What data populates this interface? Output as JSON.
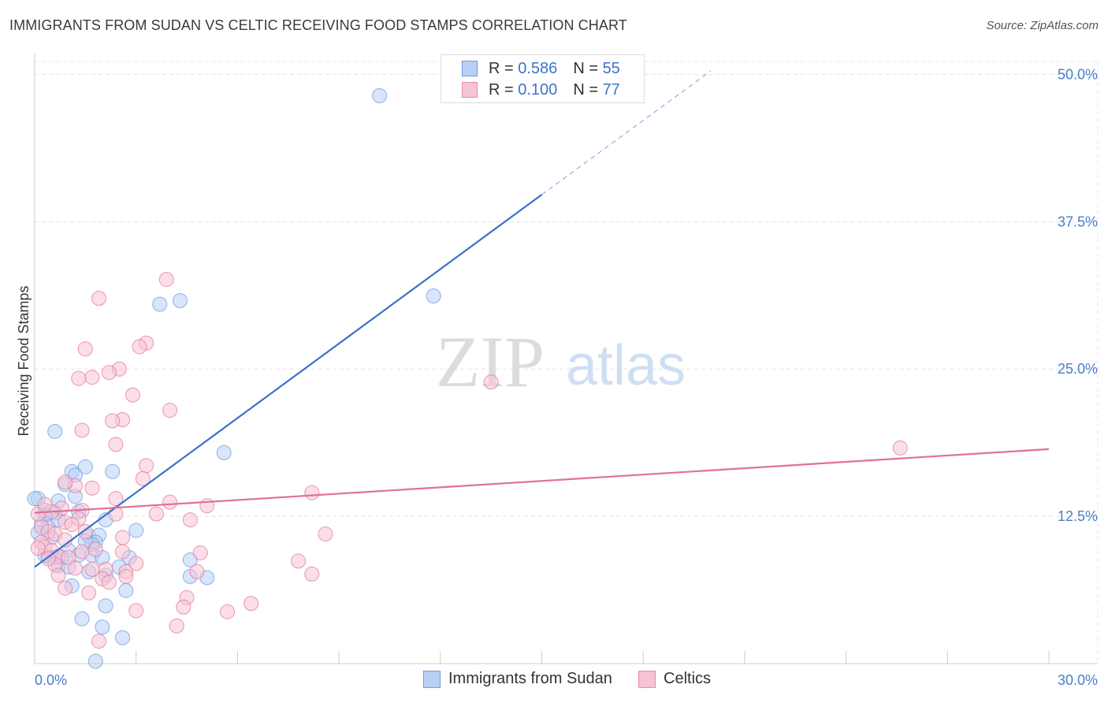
{
  "title": "IMMIGRANTS FROM SUDAN VS CELTIC RECEIVING FOOD STAMPS CORRELATION CHART",
  "source": "Source: ZipAtlas.com",
  "watermark": {
    "zip": "ZIP",
    "atlas": "atlas"
  },
  "legend": {
    "r_label": "R =",
    "n_label": "N =",
    "series": [
      {
        "r": "0.586",
        "n": "55",
        "fill": "#b8d0f5",
        "stroke": "#6b9be0"
      },
      {
        "r": "0.100",
        "n": "77",
        "fill": "#f7c3d4",
        "stroke": "#e88aa8"
      }
    ]
  },
  "bottom_legend": [
    "Immigrants from Sudan",
    "Celtics"
  ],
  "chart_data": {
    "type": "scatter",
    "title": "IMMIGRANTS FROM SUDAN VS CELTIC RECEIVING FOOD STAMPS CORRELATION CHART",
    "xlabel": "",
    "ylabel": "Receiving Food Stamps",
    "xlim": [
      0,
      30
    ],
    "ylim": [
      0,
      50
    ],
    "x_tick_labels": [
      "0.0%",
      "30.0%"
    ],
    "y_ticks": [
      12.5,
      25.0,
      37.5,
      50.0
    ],
    "y_tick_labels": [
      "12.5%",
      "25.0%",
      "37.5%",
      "50.0%"
    ],
    "grid": true,
    "series": [
      {
        "name": "Immigrants from Sudan",
        "color": "#6b9be0",
        "fill": "#b8d0f5",
        "trend": {
          "x0": 0,
          "y0": 8.2,
          "x1": 15,
          "y1": 39.8,
          "dash_to_x": 20,
          "dash_to_y": 50.3
        },
        "points": [
          [
            10.2,
            48.2
          ],
          [
            11.8,
            31.2
          ],
          [
            4.3,
            30.8
          ],
          [
            3.7,
            30.5
          ],
          [
            5.6,
            17.9
          ],
          [
            0.6,
            19.7
          ],
          [
            1.5,
            16.7
          ],
          [
            2.3,
            16.3
          ],
          [
            1.1,
            16.3
          ],
          [
            1.2,
            16.0
          ],
          [
            0.9,
            15.2
          ],
          [
            0.1,
            14.0
          ],
          [
            0.3,
            13.0
          ],
          [
            0.7,
            13.8
          ],
          [
            1.2,
            14.2
          ],
          [
            0.6,
            12.8
          ],
          [
            0.3,
            12.6
          ],
          [
            1.3,
            12.9
          ],
          [
            0.2,
            11.8
          ],
          [
            0.4,
            11.6
          ],
          [
            0.7,
            12.2
          ],
          [
            2.1,
            12.2
          ],
          [
            3.0,
            11.3
          ],
          [
            0.1,
            11.1
          ],
          [
            0.5,
            10.7
          ],
          [
            1.6,
            10.8
          ],
          [
            1.9,
            10.9
          ],
          [
            1.8,
            10.3
          ],
          [
            1.7,
            10.1
          ],
          [
            1.0,
            9.6
          ],
          [
            0.4,
            9.1
          ],
          [
            0.6,
            9.0
          ],
          [
            1.3,
            9.2
          ],
          [
            1.7,
            9.2
          ],
          [
            2.0,
            9.0
          ],
          [
            2.8,
            9.0
          ],
          [
            0.7,
            8.3
          ],
          [
            1.0,
            8.2
          ],
          [
            1.6,
            7.8
          ],
          [
            2.1,
            7.5
          ],
          [
            4.6,
            8.8
          ],
          [
            4.6,
            7.4
          ],
          [
            5.1,
            7.3
          ],
          [
            1.1,
            6.6
          ],
          [
            2.7,
            6.2
          ],
          [
            2.1,
            4.9
          ],
          [
            1.4,
            3.8
          ],
          [
            2.0,
            3.1
          ],
          [
            2.6,
            2.2
          ],
          [
            1.8,
            0.2
          ],
          [
            0.0,
            14.0
          ],
          [
            0.3,
            9.2
          ],
          [
            1.5,
            10.4
          ],
          [
            0.8,
            9.0
          ],
          [
            2.5,
            8.2
          ]
        ]
      },
      {
        "name": "Celtics",
        "color": "#e07898",
        "fill": "#f7c3d4",
        "trend": {
          "x0": 0,
          "y0": 12.8,
          "x1": 30,
          "y1": 18.2
        },
        "points": [
          [
            3.9,
            32.6
          ],
          [
            1.9,
            31.0
          ],
          [
            3.3,
            27.2
          ],
          [
            3.1,
            26.9
          ],
          [
            1.5,
            26.7
          ],
          [
            2.5,
            25.0
          ],
          [
            2.2,
            24.7
          ],
          [
            1.7,
            24.3
          ],
          [
            1.3,
            24.2
          ],
          [
            13.5,
            23.9
          ],
          [
            2.9,
            22.8
          ],
          [
            4.0,
            21.5
          ],
          [
            2.6,
            20.7
          ],
          [
            2.3,
            20.6
          ],
          [
            1.4,
            19.8
          ],
          [
            2.4,
            18.6
          ],
          [
            25.6,
            18.3
          ],
          [
            3.3,
            16.8
          ],
          [
            1.2,
            15.1
          ],
          [
            3.2,
            15.7
          ],
          [
            1.7,
            14.9
          ],
          [
            0.9,
            15.4
          ],
          [
            8.2,
            14.5
          ],
          [
            2.4,
            14.0
          ],
          [
            4.0,
            13.7
          ],
          [
            5.1,
            13.4
          ],
          [
            1.4,
            13.0
          ],
          [
            0.8,
            13.2
          ],
          [
            2.4,
            12.7
          ],
          [
            3.6,
            12.7
          ],
          [
            4.6,
            12.2
          ],
          [
            1.3,
            12.3
          ],
          [
            0.9,
            12.0
          ],
          [
            0.5,
            12.9
          ],
          [
            0.2,
            11.6
          ],
          [
            0.4,
            11.2
          ],
          [
            0.6,
            11.0
          ],
          [
            8.6,
            11.0
          ],
          [
            1.5,
            11.2
          ],
          [
            2.6,
            10.7
          ],
          [
            0.2,
            10.3
          ],
          [
            0.3,
            9.9
          ],
          [
            0.5,
            9.6
          ],
          [
            1.8,
            9.7
          ],
          [
            1.4,
            9.5
          ],
          [
            2.6,
            9.5
          ],
          [
            4.9,
            9.4
          ],
          [
            0.1,
            9.8
          ],
          [
            0.7,
            9.1
          ],
          [
            1.0,
            9.0
          ],
          [
            7.8,
            8.7
          ],
          [
            0.6,
            8.4
          ],
          [
            1.2,
            8.1
          ],
          [
            1.7,
            8.0
          ],
          [
            2.1,
            8.0
          ],
          [
            2.7,
            7.8
          ],
          [
            4.8,
            7.8
          ],
          [
            8.2,
            7.6
          ],
          [
            0.7,
            7.5
          ],
          [
            2.0,
            7.2
          ],
          [
            2.7,
            7.4
          ],
          [
            2.2,
            6.9
          ],
          [
            0.9,
            6.4
          ],
          [
            4.5,
            5.6
          ],
          [
            6.4,
            5.1
          ],
          [
            4.4,
            4.8
          ],
          [
            3.0,
            4.5
          ],
          [
            5.7,
            4.4
          ],
          [
            4.2,
            3.2
          ],
          [
            1.9,
            1.9
          ],
          [
            0.1,
            12.7
          ],
          [
            0.3,
            13.5
          ],
          [
            0.9,
            10.5
          ],
          [
            1.1,
            11.8
          ],
          [
            3.0,
            8.5
          ],
          [
            1.6,
            6.0
          ],
          [
            0.4,
            8.9
          ]
        ]
      }
    ]
  }
}
